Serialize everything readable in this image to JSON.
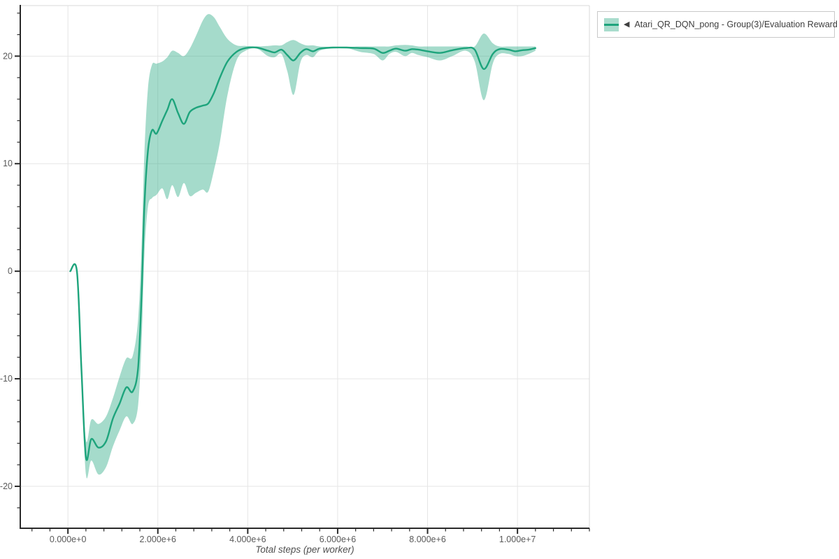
{
  "legend": {
    "collapse_icon": "◀",
    "label": "Atari_QR_DQN_pong - Group(3)/Evaluation Reward"
  },
  "chart_data": {
    "type": "line",
    "title": "",
    "xlabel": "Total steps (per worker)",
    "ylabel": "",
    "grid": true,
    "legend_position": "top-right",
    "xlim": [
      -1060000,
      11600000
    ],
    "ylim": [
      -23.9,
      24.7
    ],
    "x_ticks": [
      {
        "value": 0,
        "label": "0.000e+0"
      },
      {
        "value": 2000000,
        "label": "2.000e+6"
      },
      {
        "value": 4000000,
        "label": "4.000e+6"
      },
      {
        "value": 6000000,
        "label": "6.000e+6"
      },
      {
        "value": 8000000,
        "label": "8.000e+6"
      },
      {
        "value": 10000000,
        "label": "1.000e+7"
      }
    ],
    "y_ticks": [
      {
        "value": 20,
        "label": "20"
      },
      {
        "value": 10,
        "label": "10"
      },
      {
        "value": 0,
        "label": "0"
      },
      {
        "value": -10,
        "label": "-10"
      },
      {
        "value": -20,
        "label": "-20"
      }
    ],
    "x_minor": {
      "start": -800000,
      "step": 400000
    },
    "y_minor": {
      "start": -22,
      "step": 2
    },
    "colors": {
      "line": "#1ea47c",
      "band": "#1ea47c",
      "grid": "#e6e6e6",
      "frame": "#d9d9d9",
      "axis": "#2a2a2a",
      "tick_label": "#595959",
      "axis_title": "#4f4f4f",
      "legend_border": "#c9c9c9",
      "legend_text": "#3d3d3d"
    },
    "series": [
      {
        "name": "Atari_QR_DQN_pong - Group(3)/Evaluation Reward",
        "color": "#1ea47c",
        "band_opacity": 0.4,
        "x": [
          50000,
          200000,
          300000,
          400000,
          520000,
          680000,
          850000,
          1000000,
          1150000,
          1300000,
          1440000,
          1560000,
          1640000,
          1700000,
          1780000,
          1870000,
          1970000,
          2100000,
          2210000,
          2320000,
          2450000,
          2580000,
          2710000,
          2850000,
          3000000,
          3120000,
          3250000,
          3380000,
          3550000,
          3750000,
          3950000,
          4200000,
          4450000,
          4600000,
          4750000,
          4880000,
          5020000,
          5170000,
          5300000,
          5450000,
          5600000,
          5900000,
          6200000,
          6500000,
          6800000,
          7000000,
          7150000,
          7300000,
          7500000,
          7650000,
          7800000,
          8000000,
          8280000,
          8550000,
          8850000,
          9050000,
          9250000,
          9450000,
          9600000,
          9800000,
          9950000,
          10100000,
          10250000,
          10400000
        ],
        "mean": [
          0,
          0,
          -9,
          -17.3,
          -15.6,
          -16.4,
          -15.8,
          -13.7,
          -12.3,
          -10.8,
          -11.2,
          -9,
          -2,
          6,
          11.2,
          13.1,
          12.8,
          14,
          15,
          16,
          14.7,
          13.7,
          14.8,
          15.2,
          15.4,
          15.6,
          16.6,
          18,
          19.5,
          20.4,
          20.75,
          20.8,
          20.5,
          20.35,
          20.6,
          20.1,
          19.6,
          20.3,
          20.65,
          20.45,
          20.7,
          20.8,
          20.8,
          20.75,
          20.7,
          20.3,
          20.5,
          20.7,
          20.5,
          20.65,
          20.6,
          20.45,
          20.3,
          20.55,
          20.75,
          20.6,
          18.8,
          20.2,
          20.65,
          20.6,
          20.45,
          20.55,
          20.6,
          20.75
        ],
        "lower": [
          0,
          0,
          -9.8,
          -18.9,
          -17.6,
          -18.9,
          -18.2,
          -16.3,
          -14.8,
          -13.5,
          -14.2,
          -12.5,
          -6.5,
          1.5,
          6,
          6.8,
          7.1,
          7.7,
          6.7,
          8,
          6.9,
          8.2,
          7,
          7.3,
          7.6,
          7.4,
          9.4,
          12,
          16.4,
          19.6,
          20.5,
          20.7,
          20,
          19.9,
          20.2,
          18.6,
          16.4,
          19.4,
          20.1,
          19.9,
          20.5,
          20.75,
          20.75,
          20.4,
          20.2,
          19.6,
          20.2,
          20.4,
          20,
          20.3,
          20.1,
          19.9,
          19.6,
          20,
          20.5,
          19.5,
          15.9,
          19.3,
          20.2,
          20.2,
          20,
          20,
          20.2,
          20.5
        ],
        "upper": [
          0,
          0,
          -8.2,
          -15.7,
          -13.8,
          -14.2,
          -13.5,
          -11.8,
          -9.8,
          -8.1,
          -7.9,
          -4.5,
          2.5,
          11,
          17,
          19.2,
          19.3,
          19.5,
          19.9,
          20.5,
          20.3,
          20,
          20.7,
          21.9,
          23.3,
          23.9,
          23.6,
          22.7,
          21.6,
          21,
          20.95,
          20.9,
          20.95,
          21,
          21,
          21.3,
          21.5,
          21.2,
          21,
          21,
          20.9,
          20.85,
          20.85,
          20.9,
          20.9,
          20.9,
          20.9,
          21,
          21.05,
          21,
          20.9,
          20.9,
          20.9,
          20.9,
          20.9,
          20.9,
          22.1,
          21.2,
          20.9,
          20.9,
          20.9,
          20.9,
          20.9,
          20.9
        ]
      }
    ]
  }
}
